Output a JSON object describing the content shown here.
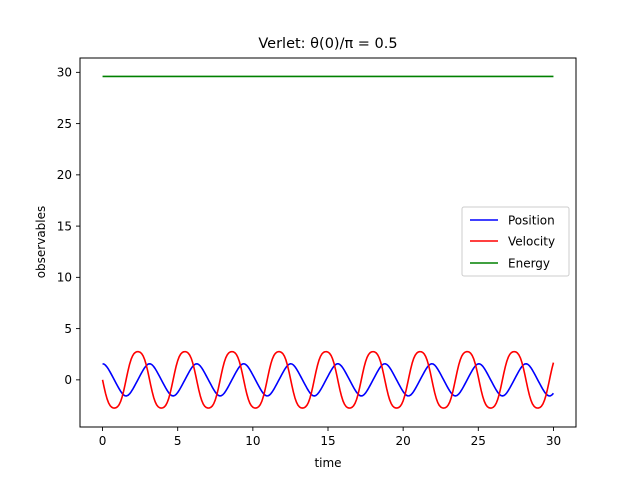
{
  "chart_data": {
    "type": "line",
    "title": "Verlet: θ(0)/π = 0.5",
    "xlabel": "time",
    "ylabel": "observables",
    "xlim": [
      -1.5,
      31.5
    ],
    "ylim": [
      -4.6,
      31.4
    ],
    "xticks": [
      0,
      5,
      10,
      15,
      20,
      25,
      30
    ],
    "yticks": [
      0,
      5,
      10,
      15,
      20,
      25,
      30
    ],
    "grid": false,
    "legend_position": "center-right",
    "sampling": {
      "t_start": 0,
      "t_end": 30,
      "step": 0.1
    },
    "series": [
      {
        "name": "Position",
        "color": "#0000ff",
        "model": "pendulum-angle",
        "amplitude": 1.5708,
        "period": 3.13,
        "phase": 0
      },
      {
        "name": "Velocity",
        "color": "#ff0000",
        "model": "pendulum-angular-velocity",
        "amplitude": 3.13,
        "period": 3.13,
        "phase": 0
      },
      {
        "name": "Energy",
        "color": "#008000",
        "model": "constant",
        "value": 29.6
      }
    ]
  }
}
